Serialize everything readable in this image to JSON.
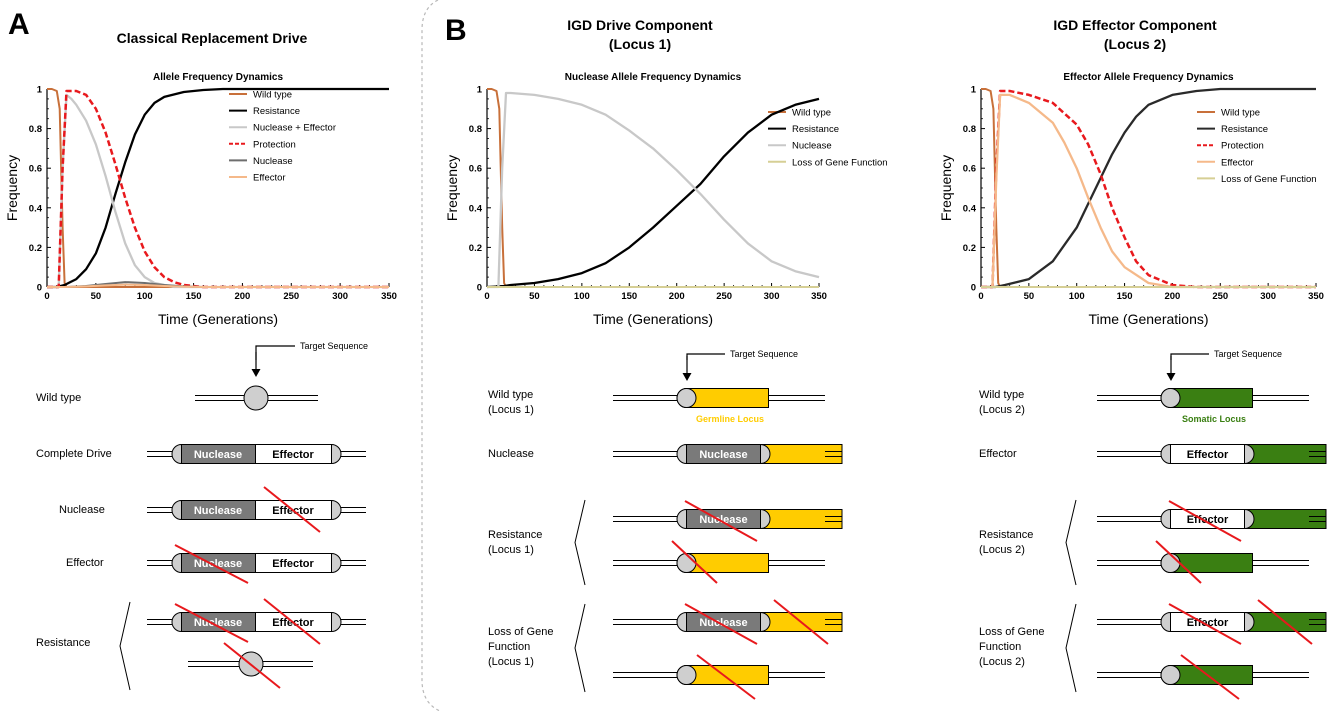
{
  "panels": {
    "a": {
      "letter": "A",
      "title": "Classical Replacement Drive"
    },
    "b": {
      "letter": "B",
      "drive_title": [
        "IGD Drive Component",
        "(Locus 1)"
      ],
      "effector_title": [
        "IGD Effector Component",
        "(Locus 2)"
      ]
    }
  },
  "colors": {
    "wild_type": "#c8703a",
    "resistance": "#000000",
    "nuclease_effector": "#c8c8c8",
    "protection": "#e8191d",
    "nuclease_line": "#6e6e6e",
    "effector_line": "#f5b98a",
    "loss_line": "#d6cf95",
    "nuclease_box": "#7a7a7a",
    "germline": "#ffcc00",
    "somatic": "#3a7f12",
    "cross": "#e8191d"
  },
  "chart_data": [
    {
      "type": "line",
      "title": "Allele Frequency Dynamics",
      "xlabel": "Time (Generations)",
      "ylabel": "Frequency",
      "xlim": [
        0,
        350
      ],
      "ylim": [
        0,
        1
      ],
      "xticks": [
        0,
        50,
        100,
        150,
        200,
        250,
        300,
        350
      ],
      "yticks": [
        "0",
        "0.2",
        "0.4",
        "0.6",
        "0.8",
        "1"
      ],
      "legend": "right",
      "series": [
        {
          "name": "Wild type",
          "color": "#c8703a",
          "dash": false,
          "width": 2,
          "x": [
            0,
            5,
            10,
            13,
            16,
            18,
            20,
            350
          ],
          "y": [
            1,
            1,
            0.99,
            0.9,
            0.3,
            0.02,
            0,
            0
          ]
        },
        {
          "name": "Resistance",
          "color": "#000000",
          "dash": false,
          "width": 2.3,
          "x": [
            0,
            10,
            18,
            22,
            30,
            40,
            50,
            60,
            70,
            80,
            90,
            100,
            110,
            120,
            140,
            160,
            180,
            200,
            250,
            300,
            350
          ],
          "y": [
            0,
            0,
            0.01,
            0.02,
            0.04,
            0.09,
            0.17,
            0.3,
            0.47,
            0.63,
            0.77,
            0.87,
            0.93,
            0.96,
            0.985,
            0.995,
            1,
            1,
            1,
            1,
            1
          ]
        },
        {
          "name": "Nuclease + Effector",
          "color": "#c8c8c8",
          "dash": false,
          "width": 2.3,
          "x": [
            0,
            12,
            16,
            20,
            25,
            30,
            40,
            50,
            60,
            70,
            80,
            90,
            100,
            110,
            120,
            130,
            150,
            200,
            350
          ],
          "y": [
            0,
            0,
            0.6,
            0.97,
            0.95,
            0.92,
            0.84,
            0.72,
            0.56,
            0.38,
            0.22,
            0.11,
            0.05,
            0.02,
            0.01,
            0,
            0,
            0,
            0
          ]
        },
        {
          "name": "Protection",
          "color": "#e8191d",
          "dash": true,
          "width": 2.5,
          "x": [
            0,
            12,
            16,
            20,
            30,
            40,
            50,
            60,
            70,
            80,
            90,
            100,
            110,
            120,
            130,
            140,
            160,
            200,
            350
          ],
          "y": [
            0,
            0,
            0.6,
            0.99,
            0.99,
            0.97,
            0.9,
            0.78,
            0.62,
            0.45,
            0.3,
            0.18,
            0.1,
            0.05,
            0.025,
            0.01,
            0,
            0,
            0
          ]
        },
        {
          "name": "Nuclease",
          "color": "#6e6e6e",
          "dash": false,
          "width": 2,
          "x": [
            0,
            20,
            40,
            60,
            80,
            100,
            120,
            140,
            160,
            200,
            350
          ],
          "y": [
            0,
            0,
            0.005,
            0.015,
            0.025,
            0.02,
            0.01,
            0.003,
            0,
            0,
            0
          ]
        },
        {
          "name": "Effector",
          "color": "#f5b98a",
          "dash": false,
          "width": 2,
          "x": [
            0,
            20,
            40,
            60,
            80,
            100,
            120,
            140,
            160,
            200,
            350
          ],
          "y": [
            0,
            0,
            0.003,
            0.008,
            0.012,
            0.01,
            0.005,
            0.002,
            0,
            0,
            0
          ]
        }
      ]
    },
    {
      "type": "line",
      "title": "Nuclease Allele Frequency Dynamics",
      "xlabel": "Time (Generations)",
      "ylabel": "Frequency",
      "xlim": [
        0,
        350
      ],
      "ylim": [
        0,
        1
      ],
      "xticks": [
        0,
        50,
        100,
        150,
        200,
        250,
        300,
        350
      ],
      "yticks": [
        "0",
        "0.2",
        "0.4",
        "0.6",
        "0.8",
        "1"
      ],
      "legend": "right",
      "series": [
        {
          "name": "Wild type",
          "color": "#c8703a",
          "dash": false,
          "width": 2,
          "x": [
            0,
            5,
            10,
            13,
            16,
            18,
            20,
            350
          ],
          "y": [
            1,
            1,
            0.99,
            0.9,
            0.3,
            0.02,
            0,
            0
          ]
        },
        {
          "name": "Resistance",
          "color": "#000000",
          "dash": false,
          "width": 2.3,
          "x": [
            0,
            18,
            25,
            50,
            75,
            100,
            125,
            150,
            175,
            200,
            225,
            250,
            275,
            300,
            325,
            350
          ],
          "y": [
            0,
            0.005,
            0.01,
            0.02,
            0.04,
            0.07,
            0.12,
            0.2,
            0.3,
            0.41,
            0.52,
            0.66,
            0.78,
            0.87,
            0.92,
            0.95
          ]
        },
        {
          "name": "Nuclease",
          "color": "#c8c8c8",
          "dash": false,
          "width": 2.3,
          "x": [
            0,
            12,
            16,
            20,
            25,
            50,
            75,
            100,
            125,
            150,
            175,
            200,
            225,
            250,
            275,
            300,
            325,
            350
          ],
          "y": [
            0,
            0,
            0.6,
            0.98,
            0.98,
            0.97,
            0.95,
            0.92,
            0.87,
            0.79,
            0.7,
            0.59,
            0.47,
            0.34,
            0.22,
            0.13,
            0.08,
            0.05
          ]
        },
        {
          "name": "Loss of Gene Function",
          "color": "#d6cf95",
          "dash": false,
          "width": 2,
          "x": [
            0,
            350
          ],
          "y": [
            0,
            0
          ]
        }
      ]
    },
    {
      "type": "line",
      "title": "Effector Allele Frequency Dynamics",
      "xlabel": "Time (Generations)",
      "ylabel": "Frequency",
      "xlim": [
        0,
        350
      ],
      "ylim": [
        0,
        1
      ],
      "xticks": [
        0,
        50,
        100,
        150,
        200,
        250,
        300,
        350
      ],
      "yticks": [
        "0",
        "0.2",
        "0.4",
        "0.6",
        "0.8",
        "1"
      ],
      "legend": "right",
      "series": [
        {
          "name": "Wild type",
          "color": "#c8703a",
          "dash": false,
          "width": 2,
          "x": [
            0,
            5,
            10,
            13,
            16,
            18,
            20,
            350
          ],
          "y": [
            1,
            1,
            0.99,
            0.9,
            0.3,
            0.02,
            0,
            0
          ]
        },
        {
          "name": "Resistance",
          "color": "#2a2a2a",
          "dash": false,
          "width": 2.3,
          "x": [
            0,
            15,
            25,
            50,
            75,
            100,
            112,
            125,
            137,
            150,
            162,
            175,
            200,
            225,
            250,
            300,
            350
          ],
          "y": [
            0,
            0,
            0.01,
            0.04,
            0.13,
            0.3,
            0.42,
            0.55,
            0.67,
            0.78,
            0.86,
            0.92,
            0.97,
            0.99,
            1,
            1,
            1
          ]
        },
        {
          "name": "Protection",
          "color": "#e8191d",
          "dash": true,
          "width": 2.5,
          "x": [
            0,
            12,
            16,
            20,
            30,
            50,
            75,
            100,
            112,
            125,
            137,
            150,
            162,
            175,
            200,
            225,
            350
          ],
          "y": [
            0,
            0,
            0.6,
            0.99,
            0.99,
            0.97,
            0.93,
            0.82,
            0.72,
            0.57,
            0.4,
            0.25,
            0.13,
            0.06,
            0.01,
            0,
            0
          ]
        },
        {
          "name": "Effector",
          "color": "#f5b98a",
          "dash": false,
          "width": 2.3,
          "x": [
            0,
            12,
            16,
            20,
            30,
            50,
            75,
            87,
            100,
            112,
            125,
            137,
            150,
            175,
            200,
            350
          ],
          "y": [
            0,
            0,
            0.55,
            0.97,
            0.97,
            0.93,
            0.83,
            0.73,
            0.6,
            0.45,
            0.3,
            0.18,
            0.1,
            0.02,
            0,
            0
          ]
        },
        {
          "name": "Loss of Gene Function",
          "color": "#d6cf95",
          "dash": false,
          "width": 2,
          "x": [
            0,
            350
          ],
          "y": [
            0,
            0
          ]
        }
      ]
    }
  ],
  "diagram_a": {
    "target_label": "Target Sequence",
    "rows": [
      {
        "label": "Wild type"
      },
      {
        "label": "Complete Drive",
        "nuclease": "Nuclease",
        "effector": "Effector"
      },
      {
        "label": "Nuclease",
        "nuclease": "Nuclease",
        "effector": "Effector"
      },
      {
        "label": "Effector",
        "nuclease": "Nuclease",
        "effector": "Effector"
      },
      {
        "label": "Resistance",
        "nuclease": "Nuclease",
        "effector": "Effector"
      }
    ]
  },
  "diagram_b1": {
    "target_label": "Target Sequence",
    "locus_label": "Germline Locus",
    "rows": [
      {
        "label": [
          "Wild type",
          "(Locus 1)"
        ]
      },
      {
        "label": [
          "Nuclease"
        ],
        "nuclease": "Nuclease"
      },
      {
        "label": [
          "Resistance",
          "(Locus 1)"
        ],
        "nuclease": "Nuclease"
      },
      {
        "label": [
          "Loss of  Gene",
          "Function",
          "(Locus 1)"
        ],
        "nuclease": "Nuclease"
      }
    ]
  },
  "diagram_b2": {
    "target_label": "Target Sequence",
    "locus_label": "Somatic Locus",
    "rows": [
      {
        "label": [
          "Wild type",
          "(Locus 2)"
        ]
      },
      {
        "label": [
          "Effector"
        ],
        "effector": "Effector"
      },
      {
        "label": [
          "Resistance",
          "(Locus 2)"
        ],
        "effector": "Effector"
      },
      {
        "label": [
          "Loss of Gene",
          "Function",
          "(Locus 2)"
        ],
        "effector": "Effector"
      }
    ]
  }
}
